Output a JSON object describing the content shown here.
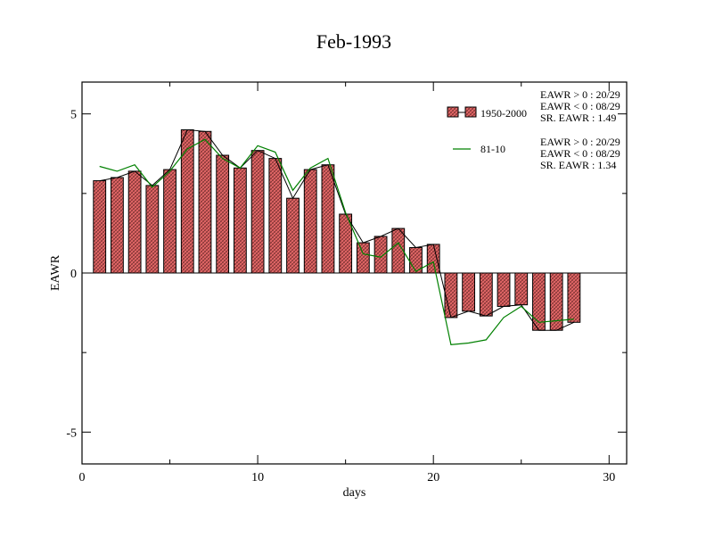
{
  "chart_data": {
    "type": "bar",
    "title": "Feb-1993",
    "xlabel": "days",
    "ylabel": "EAWR",
    "xlim": [
      0,
      31
    ],
    "ylim": [
      -6,
      6
    ],
    "x_ticks": [
      0,
      10,
      20,
      30
    ],
    "x_tick_labels": [
      "0",
      "10",
      "20",
      "30"
    ],
    "y_ticks": [
      5,
      0,
      -5
    ],
    "y_tick_labels": [
      "5",
      "0",
      "-5"
    ],
    "grid": false,
    "legend_position": "top-right",
    "x": [
      1,
      2,
      3,
      4,
      5,
      6,
      7,
      8,
      9,
      10,
      11,
      12,
      13,
      14,
      15,
      16,
      17,
      18,
      19,
      20,
      21,
      22,
      23,
      24,
      25,
      26,
      27,
      28
    ],
    "series": [
      {
        "name": "1950-2000",
        "kind": "bar",
        "color": "#e06666",
        "values": [
          2.9,
          3.0,
          3.2,
          2.75,
          3.25,
          4.5,
          4.45,
          3.7,
          3.3,
          3.85,
          3.6,
          2.35,
          3.25,
          3.4,
          1.85,
          0.95,
          1.15,
          1.4,
          0.8,
          0.9,
          -1.4,
          -1.2,
          -1.35,
          -1.05,
          -1.0,
          -1.8,
          -1.8,
          -1.55
        ]
      },
      {
        "name": "81-10",
        "kind": "line",
        "color": "#008000",
        "values": [
          3.35,
          3.2,
          3.4,
          2.7,
          3.2,
          3.9,
          4.2,
          3.6,
          3.3,
          4.0,
          3.8,
          2.6,
          3.3,
          3.6,
          1.9,
          0.6,
          0.5,
          0.95,
          0.05,
          0.35,
          -2.25,
          -2.2,
          -2.1,
          -1.4,
          -1.05,
          -1.55,
          -1.5,
          -1.45
        ]
      }
    ],
    "stats": [
      {
        "series": "1950-2000",
        "lines": [
          "EAWR > 0 : 20/29",
          "EAWR < 0 : 08/29",
          "SR. EAWR :  1.49"
        ]
      },
      {
        "series": "81-10",
        "lines": [
          "EAWR > 0 : 20/29",
          "EAWR < 0 : 08/29",
          "SR. EAWR :  1.34"
        ]
      }
    ]
  }
}
